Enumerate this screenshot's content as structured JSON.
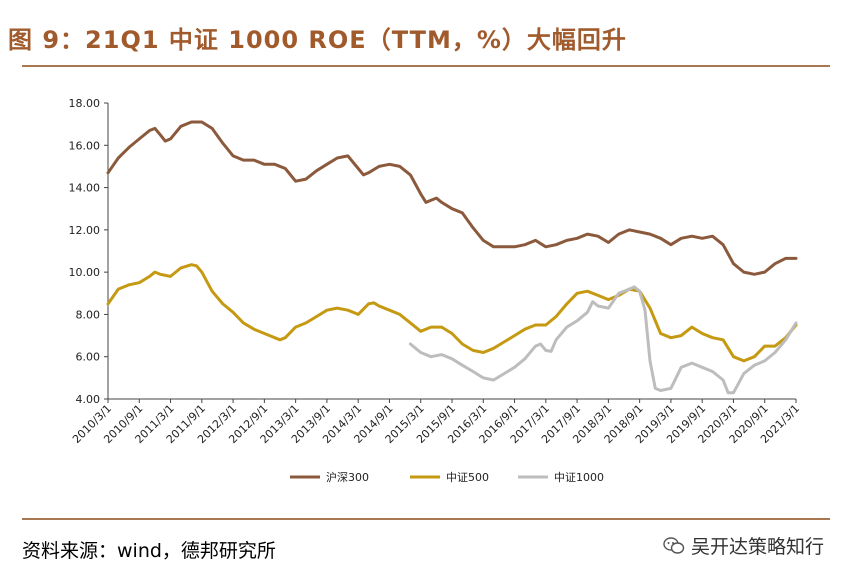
{
  "figure": {
    "title": "图 9：21Q1 中证 1000 ROE（TTM，%）大幅回升",
    "source": "资料来源：wind，德邦研究所",
    "watermark": "吴开达策略知行"
  },
  "colors": {
    "accent": "#a05a2c",
    "rule": "#a97850"
  },
  "chart_data": {
    "type": "line",
    "title": "",
    "xlabel": "",
    "ylabel": "",
    "ylim": [
      4,
      18
    ],
    "yticks": [
      "18.00",
      "16.00",
      "14.00",
      "12.00",
      "10.00",
      "8.00",
      "6.00",
      "4.00"
    ],
    "x": [
      "2010/3/1",
      "2010/9/1",
      "2011/3/1",
      "2011/9/1",
      "2012/3/1",
      "2012/9/1",
      "2013/3/1",
      "2013/9/1",
      "2014/3/1",
      "2014/9/1",
      "2015/3/1",
      "2015/9/1",
      "2016/3/1",
      "2016/9/1",
      "2017/3/1",
      "2017/9/1",
      "2018/3/1",
      "2018/9/1",
      "2019/3/1",
      "2019/9/1",
      "2020/3/1",
      "2020/9/1",
      "2021/3/1"
    ],
    "grid": false,
    "legend_position": "bottom",
    "series": [
      {
        "name": "沪深300",
        "color": "#8b5a3c",
        "points": [
          [
            0,
            14.7
          ],
          [
            0.33,
            15.4
          ],
          [
            0.67,
            15.9
          ],
          [
            1.0,
            16.3
          ],
          [
            1.33,
            16.7
          ],
          [
            1.5,
            16.8
          ],
          [
            1.67,
            16.5
          ],
          [
            1.83,
            16.2
          ],
          [
            2.0,
            16.3
          ],
          [
            2.33,
            16.9
          ],
          [
            2.67,
            17.1
          ],
          [
            3.0,
            17.1
          ],
          [
            3.33,
            16.8
          ],
          [
            3.67,
            16.1
          ],
          [
            4.0,
            15.5
          ],
          [
            4.33,
            15.3
          ],
          [
            4.67,
            15.3
          ],
          [
            5.0,
            15.1
          ],
          [
            5.33,
            15.1
          ],
          [
            5.67,
            14.9
          ],
          [
            6.0,
            14.3
          ],
          [
            6.33,
            14.4
          ],
          [
            6.67,
            14.8
          ],
          [
            7.0,
            15.1
          ],
          [
            7.33,
            15.4
          ],
          [
            7.67,
            15.5
          ],
          [
            8.0,
            14.9
          ],
          [
            8.17,
            14.6
          ],
          [
            8.33,
            14.7
          ],
          [
            8.67,
            15.0
          ],
          [
            9.0,
            15.1
          ],
          [
            9.33,
            15.0
          ],
          [
            9.67,
            14.6
          ],
          [
            10.0,
            13.7
          ],
          [
            10.17,
            13.3
          ],
          [
            10.33,
            13.4
          ],
          [
            10.5,
            13.5
          ],
          [
            10.67,
            13.3
          ],
          [
            11.0,
            13.0
          ],
          [
            11.33,
            12.8
          ],
          [
            11.67,
            12.1
          ],
          [
            12.0,
            11.5
          ],
          [
            12.33,
            11.2
          ],
          [
            12.67,
            11.2
          ],
          [
            13.0,
            11.2
          ],
          [
            13.33,
            11.3
          ],
          [
            13.67,
            11.5
          ],
          [
            14.0,
            11.2
          ],
          [
            14.33,
            11.3
          ],
          [
            14.67,
            11.5
          ],
          [
            15.0,
            11.6
          ],
          [
            15.33,
            11.8
          ],
          [
            15.67,
            11.7
          ],
          [
            16.0,
            11.4
          ],
          [
            16.33,
            11.8
          ],
          [
            16.67,
            12.0
          ],
          [
            17.0,
            11.9
          ],
          [
            17.33,
            11.8
          ],
          [
            17.67,
            11.6
          ],
          [
            18.0,
            11.3
          ],
          [
            18.33,
            11.6
          ],
          [
            18.67,
            11.7
          ],
          [
            19.0,
            11.6
          ],
          [
            19.33,
            11.7
          ],
          [
            19.67,
            11.3
          ],
          [
            20.0,
            10.4
          ],
          [
            20.33,
            10.0
          ],
          [
            20.67,
            9.9
          ],
          [
            21.0,
            10.0
          ],
          [
            21.33,
            10.4
          ],
          [
            21.67,
            10.65
          ],
          [
            22.0,
            10.65
          ]
        ]
      },
      {
        "name": "中证500",
        "color": "#c59a12",
        "points": [
          [
            0,
            8.5
          ],
          [
            0.33,
            9.2
          ],
          [
            0.67,
            9.4
          ],
          [
            1.0,
            9.5
          ],
          [
            1.33,
            9.8
          ],
          [
            1.5,
            10.0
          ],
          [
            1.67,
            9.9
          ],
          [
            2.0,
            9.8
          ],
          [
            2.33,
            10.2
          ],
          [
            2.67,
            10.35
          ],
          [
            2.83,
            10.3
          ],
          [
            3.0,
            10.0
          ],
          [
            3.33,
            9.1
          ],
          [
            3.67,
            8.5
          ],
          [
            4.0,
            8.1
          ],
          [
            4.33,
            7.6
          ],
          [
            4.67,
            7.3
          ],
          [
            5.0,
            7.1
          ],
          [
            5.33,
            6.9
          ],
          [
            5.5,
            6.8
          ],
          [
            5.67,
            6.9
          ],
          [
            6.0,
            7.4
          ],
          [
            6.33,
            7.6
          ],
          [
            6.67,
            7.9
          ],
          [
            7.0,
            8.2
          ],
          [
            7.33,
            8.3
          ],
          [
            7.67,
            8.2
          ],
          [
            8.0,
            8.0
          ],
          [
            8.33,
            8.5
          ],
          [
            8.5,
            8.55
          ],
          [
            8.67,
            8.4
          ],
          [
            9.0,
            8.2
          ],
          [
            9.33,
            8.0
          ],
          [
            9.67,
            7.6
          ],
          [
            10.0,
            7.2
          ],
          [
            10.33,
            7.4
          ],
          [
            10.67,
            7.4
          ],
          [
            11.0,
            7.1
          ],
          [
            11.33,
            6.6
          ],
          [
            11.67,
            6.3
          ],
          [
            12.0,
            6.2
          ],
          [
            12.33,
            6.4
          ],
          [
            12.67,
            6.7
          ],
          [
            13.0,
            7.0
          ],
          [
            13.33,
            7.3
          ],
          [
            13.67,
            7.5
          ],
          [
            14.0,
            7.5
          ],
          [
            14.33,
            7.9
          ],
          [
            14.67,
            8.5
          ],
          [
            15.0,
            9.0
          ],
          [
            15.33,
            9.1
          ],
          [
            15.67,
            8.9
          ],
          [
            16.0,
            8.7
          ],
          [
            16.33,
            8.9
          ],
          [
            16.67,
            9.2
          ],
          [
            17.0,
            9.1
          ],
          [
            17.33,
            8.3
          ],
          [
            17.67,
            7.1
          ],
          [
            18.0,
            6.9
          ],
          [
            18.33,
            7.0
          ],
          [
            18.67,
            7.4
          ],
          [
            19.0,
            7.1
          ],
          [
            19.33,
            6.9
          ],
          [
            19.67,
            6.8
          ],
          [
            20.0,
            6.0
          ],
          [
            20.33,
            5.8
          ],
          [
            20.67,
            6.0
          ],
          [
            21.0,
            6.5
          ],
          [
            21.33,
            6.5
          ],
          [
            21.67,
            6.9
          ],
          [
            22.0,
            7.5
          ]
        ]
      },
      {
        "name": "中证1000",
        "color": "#bdbdbd",
        "points": [
          [
            9.67,
            6.6
          ],
          [
            10.0,
            6.2
          ],
          [
            10.33,
            6.0
          ],
          [
            10.67,
            6.1
          ],
          [
            11.0,
            5.9
          ],
          [
            11.33,
            5.6
          ],
          [
            11.67,
            5.3
          ],
          [
            12.0,
            5.0
          ],
          [
            12.33,
            4.9
          ],
          [
            12.67,
            5.2
          ],
          [
            13.0,
            5.5
          ],
          [
            13.33,
            5.9
          ],
          [
            13.67,
            6.5
          ],
          [
            13.83,
            6.6
          ],
          [
            14.0,
            6.3
          ],
          [
            14.17,
            6.25
          ],
          [
            14.33,
            6.8
          ],
          [
            14.67,
            7.4
          ],
          [
            15.0,
            7.7
          ],
          [
            15.33,
            8.1
          ],
          [
            15.5,
            8.6
          ],
          [
            15.67,
            8.4
          ],
          [
            16.0,
            8.3
          ],
          [
            16.33,
            9.0
          ],
          [
            16.67,
            9.2
          ],
          [
            16.83,
            9.3
          ],
          [
            17.0,
            9.1
          ],
          [
            17.17,
            8.2
          ],
          [
            17.33,
            5.8
          ],
          [
            17.5,
            4.5
          ],
          [
            17.67,
            4.4
          ],
          [
            18.0,
            4.5
          ],
          [
            18.33,
            5.5
          ],
          [
            18.67,
            5.7
          ],
          [
            19.0,
            5.5
          ],
          [
            19.33,
            5.3
          ],
          [
            19.67,
            4.9
          ],
          [
            19.83,
            4.3
          ],
          [
            20.0,
            4.3
          ],
          [
            20.33,
            5.2
          ],
          [
            20.67,
            5.6
          ],
          [
            21.0,
            5.8
          ],
          [
            21.33,
            6.2
          ],
          [
            21.67,
            6.8
          ],
          [
            22.0,
            7.6
          ]
        ]
      }
    ]
  }
}
